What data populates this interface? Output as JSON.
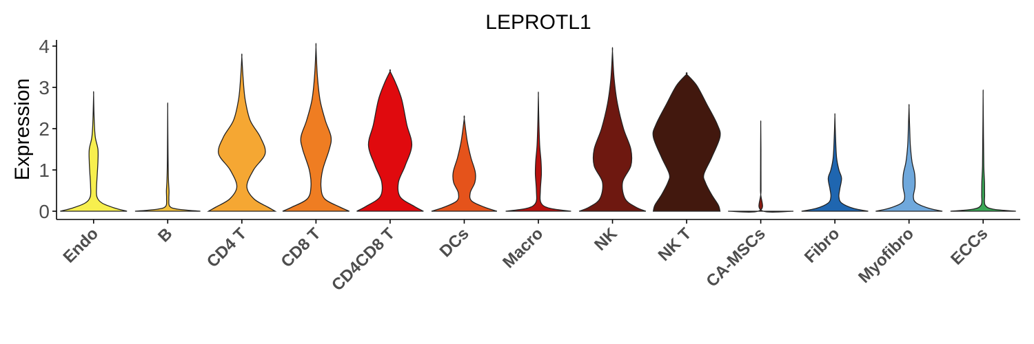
{
  "chart_data": {
    "type": "violin",
    "title": "LEPROTL1",
    "xlabel": "",
    "ylabel": "Expression",
    "ylim": [
      -0.2,
      4.15
    ],
    "yticks": [
      0,
      1,
      2,
      3,
      4
    ],
    "grid": false,
    "legend": "none",
    "categories": [
      "Endo",
      "B",
      "CD4 T",
      "CD8 T",
      "CD4CD8 T",
      "DCs",
      "Macro",
      "NK",
      "NK T",
      "CA-MSCs",
      "Fibro",
      "Myofibro",
      "ECCs"
    ],
    "colors": [
      "#f7ef4e",
      "#f3c13a",
      "#f5a733",
      "#ef7d22",
      "#e00a0e",
      "#e5531b",
      "#b8110e",
      "#6e1810",
      "#42180e",
      "#8c1a10",
      "#1f66b0",
      "#6fa8dc",
      "#3aa856"
    ],
    "max_values": [
      2.82,
      2.5,
      3.74,
      3.98,
      3.39,
      2.24,
      2.81,
      3.88,
      3.32,
      2.11,
      2.3,
      2.52,
      2.81
    ],
    "density_profiles": [
      [
        [
          0,
          1
        ],
        [
          0.08,
          0.62
        ],
        [
          0.2,
          0.25
        ],
        [
          0.35,
          0.1
        ],
        [
          0.6,
          0.09
        ],
        [
          0.9,
          0.11
        ],
        [
          1.2,
          0.13
        ],
        [
          1.5,
          0.13
        ],
        [
          1.8,
          0.05
        ],
        [
          2.2,
          0.02
        ],
        [
          2.82,
          0
        ]
      ],
      [
        [
          0,
          0.98
        ],
        [
          0.05,
          0.3
        ],
        [
          0.12,
          0.06
        ],
        [
          0.3,
          0.035
        ],
        [
          0.5,
          0.04
        ],
        [
          0.8,
          0.02
        ],
        [
          1.5,
          0.008
        ],
        [
          2.5,
          0
        ]
      ],
      [
        [
          0,
          1
        ],
        [
          0.1,
          0.78
        ],
        [
          0.3,
          0.36
        ],
        [
          0.6,
          0.15
        ],
        [
          1.0,
          0.35
        ],
        [
          1.4,
          0.7
        ],
        [
          1.8,
          0.55
        ],
        [
          2.2,
          0.25
        ],
        [
          2.7,
          0.1
        ],
        [
          3.2,
          0.04
        ],
        [
          3.74,
          0
        ]
      ],
      [
        [
          0,
          1
        ],
        [
          0.1,
          0.72
        ],
        [
          0.3,
          0.26
        ],
        [
          0.6,
          0.15
        ],
        [
          1.0,
          0.2
        ],
        [
          1.5,
          0.4
        ],
        [
          1.8,
          0.45
        ],
        [
          2.2,
          0.28
        ],
        [
          2.7,
          0.12
        ],
        [
          3.3,
          0.04
        ],
        [
          3.98,
          0
        ]
      ],
      [
        [
          0,
          1
        ],
        [
          0.12,
          0.72
        ],
        [
          0.35,
          0.3
        ],
        [
          0.7,
          0.25
        ],
        [
          1.1,
          0.45
        ],
        [
          1.6,
          0.65
        ],
        [
          2.1,
          0.5
        ],
        [
          2.7,
          0.35
        ],
        [
          3.1,
          0.17
        ],
        [
          3.39,
          0
        ]
      ],
      [
        [
          0,
          0.98
        ],
        [
          0.1,
          0.6
        ],
        [
          0.25,
          0.22
        ],
        [
          0.45,
          0.18
        ],
        [
          0.7,
          0.32
        ],
        [
          0.95,
          0.33
        ],
        [
          1.3,
          0.2
        ],
        [
          1.7,
          0.09
        ],
        [
          2.24,
          0
        ]
      ],
      [
        [
          0,
          0.98
        ],
        [
          0.07,
          0.35
        ],
        [
          0.2,
          0.08
        ],
        [
          0.5,
          0.06
        ],
        [
          0.9,
          0.09
        ],
        [
          1.2,
          0.08
        ],
        [
          1.6,
          0.04
        ],
        [
          2.2,
          0.015
        ],
        [
          2.81,
          0
        ]
      ],
      [
        [
          0,
          1
        ],
        [
          0.1,
          0.7
        ],
        [
          0.3,
          0.38
        ],
        [
          0.7,
          0.3
        ],
        [
          1.1,
          0.55
        ],
        [
          1.5,
          0.55
        ],
        [
          2.0,
          0.33
        ],
        [
          2.6,
          0.15
        ],
        [
          3.2,
          0.05
        ],
        [
          3.88,
          0
        ]
      ],
      [
        [
          0,
          1
        ],
        [
          0.15,
          0.95
        ],
        [
          0.4,
          0.75
        ],
        [
          0.7,
          0.56
        ],
        [
          0.9,
          0.52
        ],
        [
          1.3,
          0.75
        ],
        [
          1.8,
          1.0
        ],
        [
          2.1,
          0.92
        ],
        [
          2.6,
          0.6
        ],
        [
          3.05,
          0.3
        ],
        [
          3.32,
          0
        ]
      ],
      [
        [
          0,
          0.98
        ],
        [
          0.02,
          0.02
        ],
        [
          0.5,
          0.008
        ],
        [
          1.5,
          0.005
        ],
        [
          2.11,
          0
        ]
      ],
      [
        [
          0,
          1
        ],
        [
          0.07,
          0.55
        ],
        [
          0.2,
          0.2
        ],
        [
          0.35,
          0.12
        ],
        [
          0.55,
          0.15
        ],
        [
          0.8,
          0.2
        ],
        [
          1.0,
          0.12
        ],
        [
          1.3,
          0.05
        ],
        [
          1.8,
          0.02
        ],
        [
          2.3,
          0
        ]
      ],
      [
        [
          0,
          1
        ],
        [
          0.07,
          0.6
        ],
        [
          0.2,
          0.22
        ],
        [
          0.35,
          0.13
        ],
        [
          0.6,
          0.18
        ],
        [
          0.9,
          0.17
        ],
        [
          1.2,
          0.09
        ],
        [
          1.6,
          0.04
        ],
        [
          2.0,
          0.02
        ],
        [
          2.52,
          0
        ]
      ],
      [
        [
          0,
          0.98
        ],
        [
          0.05,
          0.3
        ],
        [
          0.15,
          0.06
        ],
        [
          0.4,
          0.045
        ],
        [
          0.7,
          0.04
        ],
        [
          1.1,
          0.02
        ],
        [
          1.8,
          0.01
        ],
        [
          2.81,
          0
        ]
      ]
    ]
  }
}
